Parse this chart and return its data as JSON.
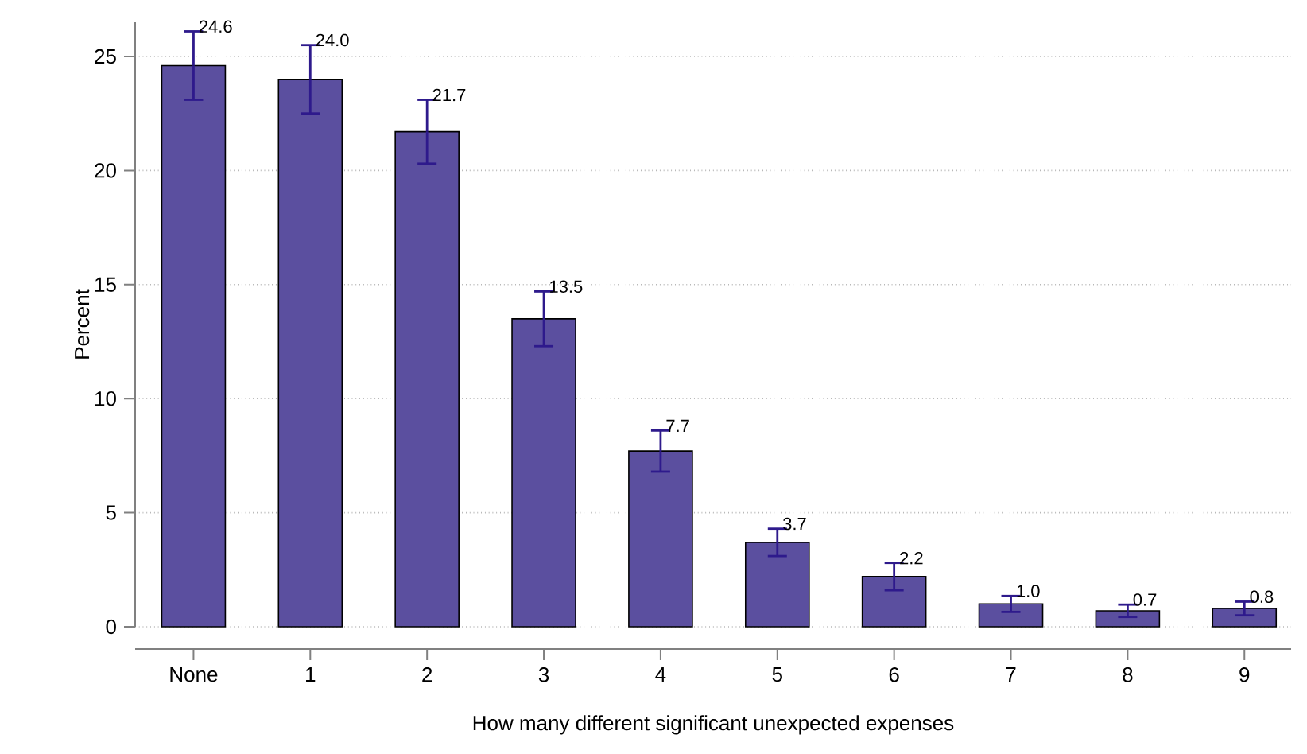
{
  "chart_data": {
    "type": "bar",
    "xlabel": "How many different significant unexpected expenses",
    "ylabel": "Percent",
    "categories": [
      "None",
      "1",
      "2",
      "3",
      "4",
      "5",
      "6",
      "7",
      "8",
      "9"
    ],
    "values": [
      24.6,
      24.0,
      21.7,
      13.5,
      7.7,
      3.7,
      2.2,
      1.0,
      0.7,
      0.8
    ],
    "errors": [
      1.5,
      1.5,
      1.4,
      1.2,
      0.9,
      0.6,
      0.6,
      0.35,
      0.27,
      0.3
    ],
    "value_labels": [
      "24.6",
      "24.0",
      "21.7",
      "13.5",
      "7.7",
      "3.7",
      "2.2",
      "1.0",
      "0.7",
      "0.8"
    ],
    "color": "#5b4f9f",
    "ylim": [
      0,
      26.5
    ],
    "yticks": [
      0,
      5,
      10,
      15,
      20,
      25
    ],
    "grid": "y"
  }
}
